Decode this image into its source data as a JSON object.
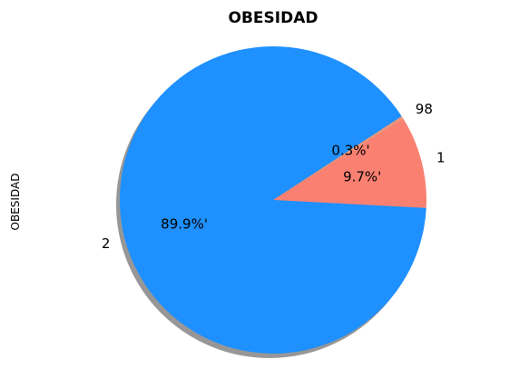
{
  "chart_data": {
    "type": "pie",
    "title": "OBESIDAD",
    "ylabel": "OBESIDAD",
    "slices": [
      {
        "label": "1",
        "value": 9.7,
        "pct_label": "9.7%'",
        "color": "#FA8072"
      },
      {
        "label": "98",
        "value": 0.3,
        "pct_label": "0.3%'",
        "color": "#E9967A"
      },
      {
        "label": "2",
        "value": 89.9,
        "pct_label": "89.9%'",
        "color": "#1E90FF"
      }
    ],
    "shadow": true
  }
}
